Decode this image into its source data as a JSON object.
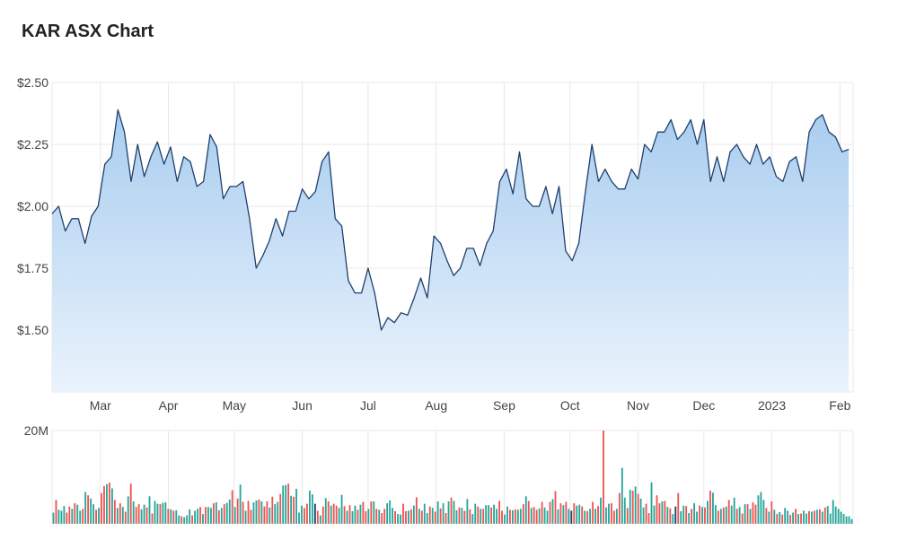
{
  "title": "KAR ASX Chart",
  "colors": {
    "line": "#1f3f6e",
    "area_top": "#a9cdef",
    "area_bottom": "#eaf3fc",
    "grid": "#e8e8e8",
    "vol_up": "#26a69a",
    "vol_down": "#ef5350",
    "vol_dark": "#1f3f6e"
  },
  "chart_data": [
    {
      "type": "area",
      "title": "KAR ASX Chart",
      "xlabel": "",
      "ylabel": "",
      "ylim": [
        1.25,
        2.5
      ],
      "xlim": [
        "2022-02-07",
        "2023-02-07"
      ],
      "yticks": [
        {
          "value": 2.5,
          "label": "$2.50"
        },
        {
          "value": 2.25,
          "label": "$2.25"
        },
        {
          "value": 2.0,
          "label": "$2.00"
        },
        {
          "value": 1.75,
          "label": "$1.75"
        },
        {
          "value": 1.5,
          "label": "$1.50"
        }
      ],
      "xticks": [
        {
          "date": "2022-03-01",
          "label": "Mar"
        },
        {
          "date": "2022-04-01",
          "label": "Apr"
        },
        {
          "date": "2022-05-01",
          "label": "May"
        },
        {
          "date": "2022-06-01",
          "label": "Jun"
        },
        {
          "date": "2022-07-01",
          "label": "Jul"
        },
        {
          "date": "2022-08-01",
          "label": "Aug"
        },
        {
          "date": "2022-09-01",
          "label": "Sep"
        },
        {
          "date": "2022-10-01",
          "label": "Oct"
        },
        {
          "date": "2022-11-01",
          "label": "Nov"
        },
        {
          "date": "2022-12-01",
          "label": "Dec"
        },
        {
          "date": "2023-01-01",
          "label": "2023"
        },
        {
          "date": "2023-02-01",
          "label": "Feb"
        }
      ],
      "grid": true,
      "series": [
        {
          "x": [
            "2022-02-07",
            "2022-02-10",
            "2022-02-13",
            "2022-02-16",
            "2022-02-19",
            "2022-02-22",
            "2022-02-25",
            "2022-02-28",
            "2022-03-03",
            "2022-03-06",
            "2022-03-09",
            "2022-03-12",
            "2022-03-15",
            "2022-03-18",
            "2022-03-21",
            "2022-03-24",
            "2022-03-27",
            "2022-03-30",
            "2022-04-02",
            "2022-04-05",
            "2022-04-08",
            "2022-04-11",
            "2022-04-14",
            "2022-04-17",
            "2022-04-20",
            "2022-04-23",
            "2022-04-26",
            "2022-04-29",
            "2022-05-02",
            "2022-05-05",
            "2022-05-08",
            "2022-05-11",
            "2022-05-14",
            "2022-05-17",
            "2022-05-20",
            "2022-05-23",
            "2022-05-26",
            "2022-05-29",
            "2022-06-01",
            "2022-06-04",
            "2022-06-07",
            "2022-06-10",
            "2022-06-13",
            "2022-06-16",
            "2022-06-19",
            "2022-06-22",
            "2022-06-25",
            "2022-06-28",
            "2022-07-01",
            "2022-07-04",
            "2022-07-07",
            "2022-07-10",
            "2022-07-13",
            "2022-07-16",
            "2022-07-19",
            "2022-07-22",
            "2022-07-25",
            "2022-07-28",
            "2022-07-31",
            "2022-08-03",
            "2022-08-06",
            "2022-08-09",
            "2022-08-12",
            "2022-08-15",
            "2022-08-18",
            "2022-08-21",
            "2022-08-24",
            "2022-08-27",
            "2022-08-30",
            "2022-09-02",
            "2022-09-05",
            "2022-09-08",
            "2022-09-11",
            "2022-09-14",
            "2022-09-17",
            "2022-09-20",
            "2022-09-23",
            "2022-09-26",
            "2022-09-29",
            "2022-10-02",
            "2022-10-05",
            "2022-10-08",
            "2022-10-11",
            "2022-10-14",
            "2022-10-17",
            "2022-10-20",
            "2022-10-23",
            "2022-10-26",
            "2022-10-29",
            "2022-11-01",
            "2022-11-04",
            "2022-11-07",
            "2022-11-10",
            "2022-11-13",
            "2022-11-16",
            "2022-11-19",
            "2022-11-22",
            "2022-11-25",
            "2022-11-28",
            "2022-12-01",
            "2022-12-04",
            "2022-12-07",
            "2022-12-10",
            "2022-12-13",
            "2022-12-16",
            "2022-12-19",
            "2022-12-22",
            "2022-12-25",
            "2022-12-28",
            "2022-12-31",
            "2023-01-03",
            "2023-01-06",
            "2023-01-09",
            "2023-01-12",
            "2023-01-15",
            "2023-01-18",
            "2023-01-21",
            "2023-01-24",
            "2023-01-27",
            "2023-01-30",
            "2023-02-02",
            "2023-02-05"
          ],
          "values": [
            1.97,
            2.0,
            1.9,
            1.95,
            1.95,
            1.85,
            1.96,
            2.0,
            2.17,
            2.2,
            2.39,
            2.3,
            2.1,
            2.25,
            2.12,
            2.2,
            2.26,
            2.17,
            2.24,
            2.1,
            2.2,
            2.18,
            2.08,
            2.1,
            2.29,
            2.24,
            2.03,
            2.08,
            2.08,
            2.1,
            1.95,
            1.75,
            1.8,
            1.86,
            1.95,
            1.88,
            1.98,
            1.98,
            2.07,
            2.03,
            2.06,
            2.18,
            2.22,
            1.95,
            1.92,
            1.7,
            1.65,
            1.65,
            1.75,
            1.65,
            1.5,
            1.55,
            1.53,
            1.57,
            1.56,
            1.63,
            1.71,
            1.63,
            1.88,
            1.85,
            1.78,
            1.72,
            1.75,
            1.83,
            1.83,
            1.76,
            1.85,
            1.9,
            2.1,
            2.15,
            2.05,
            2.22,
            2.03,
            2.0,
            2.0,
            2.08,
            1.97,
            2.08,
            1.82,
            1.78,
            1.85,
            2.06,
            2.25,
            2.1,
            2.15,
            2.1,
            2.07,
            2.07,
            2.15,
            2.11,
            2.25,
            2.22,
            2.3,
            2.3,
            2.35,
            2.27,
            2.3,
            2.35,
            2.25,
            2.35,
            2.1,
            2.2,
            2.1,
            2.22,
            2.25,
            2.2,
            2.17,
            2.25,
            2.17,
            2.2,
            2.12,
            2.1,
            2.18,
            2.2,
            2.1,
            2.3,
            2.35,
            2.37,
            2.3,
            2.28,
            2.22,
            2.23
          ]
        }
      ]
    },
    {
      "type": "bar",
      "title": "",
      "ylim": [
        0,
        20
      ],
      "yticks": [
        {
          "value": 20,
          "label": "20M"
        }
      ],
      "grid": true,
      "series": [
        {
          "name": "",
          "values": [
            2.4,
            5.1,
            3.0,
            2.8,
            3.8,
            2.4,
            3.7,
            3.2,
            4.4,
            4.1,
            2.8,
            3.2,
            6.8,
            6.1,
            5.4,
            4.2,
            3.0,
            3.4,
            6.6,
            8.1,
            8.5,
            8.8,
            7.6,
            5.1,
            3.4,
            4.4,
            3.6,
            2.6,
            5.9,
            8.6,
            4.8,
            3.6,
            4.2,
            3.1,
            4.1,
            3.5,
            5.9,
            2.2,
            4.9,
            4.3,
            4.2,
            4.5,
            4.6,
            3.2,
            3.1,
            2.8,
            2.9,
            1.8,
            1.6,
            1.4,
            1.8,
            3.1,
            1.8,
            2.8,
            3.2,
            3.6,
            2.1,
            3.6,
            3.6,
            3.4,
            4.4,
            4.6,
            2.9,
            3.4,
            4.2,
            4.5,
            5.2,
            7.2,
            3.6,
            5.4,
            8.4,
            4.7,
            2.8,
            4.9,
            3.0,
            4.6,
            5.0,
            5.2,
            4.8,
            3.7,
            4.8,
            3.5,
            5.8,
            4.2,
            4.7,
            6.4,
            8.2,
            8.3,
            8.6,
            6.0,
            5.8,
            7.5,
            2.4,
            3.9,
            3.4,
            4.3,
            7.1,
            6.3,
            4.3,
            2.8,
            1.8,
            3.7,
            5.5,
            4.8,
            3.9,
            4.3,
            3.9,
            3.4,
            6.2,
            3.8,
            2.8,
            4.0,
            2.7,
            3.9,
            3.0,
            4.1,
            4.7,
            2.7,
            3.2,
            4.8,
            4.8,
            3.2,
            3.0,
            2.3,
            3.2,
            4.4,
            5.0,
            3.4,
            2.7,
            2.1,
            2.0,
            4.3,
            2.7,
            2.8,
            3.1,
            3.9,
            5.7,
            3.2,
            2.8,
            4.3,
            2.3,
            3.7,
            3.4,
            2.6,
            4.8,
            3.3,
            4.4,
            2.3,
            4.8,
            5.6,
            4.9,
            2.9,
            3.5,
            3.4,
            2.8,
            5.3,
            3.1,
            2.1,
            4.3,
            3.7,
            3.2,
            3.2,
            4.0,
            4.0,
            3.5,
            4.1,
            3.2,
            4.9,
            2.8,
            2.0,
            3.7,
            3.0,
            2.9,
            3.1,
            3.0,
            3.2,
            4.2,
            5.9,
            4.9,
            3.4,
            3.6,
            3.0,
            3.3,
            4.7,
            3.5,
            2.8,
            4.7,
            5.3,
            7.0,
            3.1,
            4.4,
            4.0,
            4.7,
            3.2,
            2.8,
            4.4,
            3.9,
            4.1,
            3.7,
            2.8,
            2.7,
            3.2,
            4.7,
            3.2,
            3.8,
            5.6,
            20.0,
            3.5,
            4.3,
            4.4,
            2.8,
            3.2,
            6.6,
            12.0,
            5.6,
            3.4,
            7.3,
            7.1,
            8.0,
            6.4,
            5.4,
            3.5,
            4.3,
            2.3,
            8.9,
            3.9,
            6.1,
            4.4,
            4.8,
            4.9,
            3.6,
            3.3,
            2.1,
            3.7,
            6.6,
            2.7,
            3.9,
            3.8,
            2.3,
            3.2,
            4.4,
            2.6,
            3.9,
            3.6,
            3.5,
            4.9,
            7.1,
            6.7,
            4.0,
            2.8,
            3.2,
            3.5,
            3.7,
            5.1,
            3.9,
            5.6,
            3.2,
            3.6,
            2.2,
            4.2,
            4.2,
            3.2,
            4.6,
            4.1,
            6.1,
            6.8,
            5.1,
            3.4,
            2.6,
            4.8,
            3.0,
            2.1,
            2.5,
            2.0,
            3.4,
            2.8,
            1.9,
            2.4,
            3.2,
            2.1,
            2.2,
            2.8,
            2.2,
            2.7,
            2.6,
            2.8,
            3.0,
            3.1,
            2.6,
            3.5,
            3.8,
            2.2,
            5.1,
            3.7,
            3.2,
            2.6,
            2.1,
            1.6,
            1.6,
            1.0
          ],
          "colors": [
            "u",
            "d",
            "u",
            "u",
            "u",
            "d",
            "d",
            "u",
            "d",
            "u",
            "u",
            "d",
            "u",
            "d",
            "u",
            "u",
            "d",
            "u",
            "d",
            "d",
            "u",
            "d",
            "u",
            "d",
            "u",
            "d",
            "u",
            "d",
            "u",
            "d",
            "u",
            "d",
            "d",
            "u",
            "u",
            "d",
            "u",
            "d",
            "u",
            "u",
            "d",
            "u",
            "u",
            "d",
            "u",
            "d",
            "u",
            "u",
            "d",
            "u",
            "u",
            "u",
            "d",
            "u",
            "u",
            "d",
            "u",
            "d",
            "u",
            "u",
            "d",
            "u",
            "d",
            "u",
            "d",
            "u",
            "u",
            "d",
            "u",
            "d",
            "u",
            "d",
            "u",
            "d",
            "d",
            "u",
            "u",
            "d",
            "u",
            "d",
            "d",
            "u",
            "d",
            "u",
            "u",
            "d",
            "u",
            "u",
            "d",
            "u",
            "d",
            "u",
            "u",
            "u",
            "d",
            "d",
            "u",
            "u",
            "k",
            "d",
            "u",
            "d",
            "u",
            "d",
            "u",
            "d",
            "d",
            "u",
            "u",
            "d",
            "u",
            "d",
            "u",
            "u",
            "d",
            "u",
            "d",
            "d",
            "u",
            "d",
            "u",
            "d",
            "u",
            "d",
            "d",
            "u",
            "u",
            "u",
            "d",
            "u",
            "u",
            "d",
            "d",
            "u",
            "d",
            "u",
            "d",
            "u",
            "d",
            "u",
            "u",
            "d",
            "u",
            "d",
            "u",
            "d",
            "u",
            "d",
            "u",
            "d",
            "u",
            "u",
            "d",
            "u",
            "d",
            "u",
            "d",
            "u",
            "u",
            "d",
            "u",
            "d",
            "u",
            "u",
            "d",
            "u",
            "u",
            "d",
            "d",
            "u",
            "u",
            "d",
            "u",
            "d",
            "u",
            "u",
            "d",
            "u",
            "d",
            "u",
            "d",
            "d",
            "u",
            "d",
            "u",
            "u",
            "d",
            "u",
            "d",
            "u",
            "d",
            "u",
            "d",
            "u",
            "k",
            "d",
            "u",
            "u",
            "d",
            "u",
            "d",
            "u",
            "d",
            "u",
            "d",
            "u",
            "d",
            "u",
            "u",
            "d",
            "d",
            "u",
            "d",
            "u",
            "u",
            "d",
            "u",
            "d",
            "u",
            "d",
            "u",
            "u",
            "d",
            "d",
            "u",
            "u",
            "d",
            "d",
            "u",
            "d",
            "u",
            "d",
            "u",
            "k",
            "d",
            "u",
            "u",
            "d",
            "u",
            "d",
            "u",
            "u",
            "d",
            "u",
            "d",
            "u",
            "d",
            "u",
            "u",
            "d",
            "u",
            "d",
            "u",
            "d",
            "u",
            "u",
            "d",
            "u",
            "d",
            "u",
            "d",
            "u",
            "d",
            "d",
            "u",
            "u",
            "u",
            "d",
            "u",
            "d",
            "u",
            "d",
            "u",
            "d",
            "u",
            "u",
            "d",
            "u",
            "d",
            "u",
            "d",
            "u",
            "u",
            "d",
            "u",
            "d",
            "u",
            "d",
            "u",
            "d",
            "u",
            "u"
          ]
        }
      ]
    }
  ]
}
